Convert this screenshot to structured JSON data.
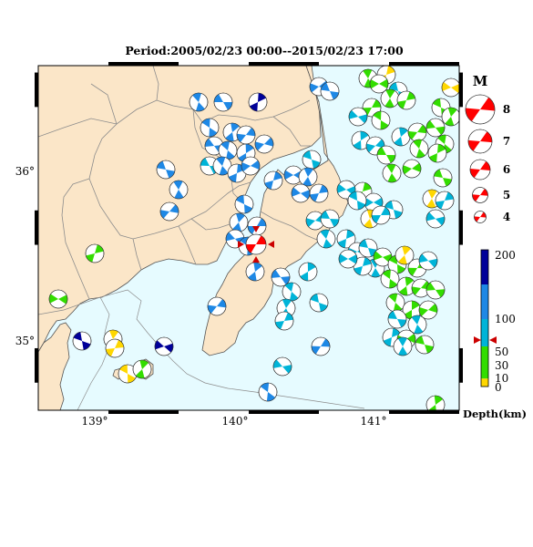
{
  "title": "Period:2005/02/23 00:00--2015/02/23 17:00",
  "map": {
    "lon_range": [
      138.6,
      141.6
    ],
    "lat_range": [
      34.6,
      36.62
    ],
    "lon_ticks": [
      "139°",
      "140°",
      "141°"
    ],
    "lat_ticks": [
      "35°",
      "36°"
    ],
    "land_color": "#fbe6c8",
    "sea_color": "#e6fbff",
    "border_color": "#8c8c8c",
    "main_event": {
      "lon": 140.15,
      "lat": 35.58,
      "color": "#ff0000"
    }
  },
  "magnitude_legend": {
    "title": "M",
    "items": [
      "8",
      "7",
      "6",
      "5",
      "4"
    ],
    "color": "#ff0000"
  },
  "depth_scale": {
    "label": "Depth(km)",
    "ticks": [
      "200",
      "100",
      "50",
      "30",
      "10",
      "0"
    ],
    "colors": {
      "very_shallow": "#ffd700",
      "shallow": "#33dd00",
      "intermediate": "#00b4d8",
      "mid_deep": "#1e88e5",
      "deep": "#000099"
    },
    "pointer_value": 80,
    "pointer_color": "#cc0000"
  }
}
